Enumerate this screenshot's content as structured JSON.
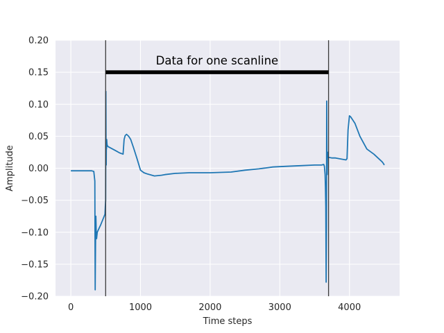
{
  "chart_data": {
    "type": "line",
    "title": "",
    "xlabel": "Time steps",
    "ylabel": "Amplitude",
    "xlim": [
      -220,
      4720
    ],
    "ylim": [
      -0.2,
      0.2
    ],
    "x_ticks": [
      0,
      1000,
      2000,
      3000,
      4000
    ],
    "x_tick_labels": [
      "0",
      "1000",
      "2000",
      "3000",
      "4000"
    ],
    "y_ticks": [
      -0.2,
      -0.15,
      -0.1,
      -0.05,
      0.0,
      0.05,
      0.1,
      0.15,
      0.2
    ],
    "y_tick_labels": [
      "−0.20",
      "−0.15",
      "−0.10",
      "−0.05",
      "0.00",
      "0.05",
      "0.10",
      "0.15",
      "0.20"
    ],
    "grid": true,
    "background": "#eaeaf2",
    "series": [
      {
        "color": "#1f77b4",
        "x": [
          0,
          100,
          200,
          300,
          330,
          345,
          350,
          355,
          360,
          365,
          370,
          380,
          400,
          430,
          460,
          490,
          495,
          500,
          503,
          505,
          508,
          510,
          512,
          515,
          520,
          530,
          600,
          650,
          700,
          750,
          765,
          780,
          800,
          830,
          860,
          900,
          950,
          1000,
          1050,
          1100,
          1200,
          1300,
          1350,
          1500,
          1700,
          2000,
          2300,
          2500,
          2700,
          2900,
          3100,
          3300,
          3500,
          3600,
          3630,
          3640,
          3650,
          3655,
          3660,
          3665,
          3670,
          3673,
          3676,
          3680,
          3683,
          3686,
          3690,
          3700,
          3750,
          3800,
          3900,
          3950,
          3965,
          3980,
          4000,
          4020,
          4080,
          4150,
          4250,
          4350,
          4420,
          4470,
          4490,
          4500
        ],
        "y": [
          -0.004,
          -0.004,
          -0.004,
          -0.004,
          -0.005,
          -0.02,
          -0.19,
          -0.12,
          -0.075,
          -0.1,
          -0.11,
          -0.1,
          -0.095,
          -0.088,
          -0.08,
          -0.072,
          -0.06,
          -0.05,
          0.12,
          0.045,
          0.005,
          0.04,
          0.03,
          0.045,
          0.037,
          0.034,
          0.03,
          0.027,
          0.024,
          0.022,
          0.045,
          0.051,
          0.053,
          0.05,
          0.045,
          0.032,
          0.015,
          -0.003,
          -0.007,
          -0.009,
          -0.012,
          -0.011,
          -0.01,
          -0.008,
          -0.007,
          -0.007,
          -0.006,
          -0.003,
          -0.001,
          0.002,
          0.003,
          0.004,
          0.005,
          0.005,
          0.006,
          0.003,
          -0.01,
          -0.03,
          -0.06,
          -0.178,
          -0.09,
          0.105,
          0.03,
          -0.01,
          0.015,
          0.025,
          0.018,
          0.017,
          0.016,
          0.016,
          0.014,
          0.013,
          0.015,
          0.06,
          0.082,
          0.08,
          0.07,
          0.05,
          0.03,
          0.022,
          0.015,
          0.01,
          0.007,
          0.005
        ]
      }
    ],
    "markers": [
      {
        "x": 500,
        "color": "#3a3a3a"
      },
      {
        "x": 3700,
        "color": "#3a3a3a"
      }
    ],
    "annotation": {
      "text": "Data for one scanline",
      "x_start": 500,
      "x_end": 3700,
      "y": 0.15
    }
  }
}
